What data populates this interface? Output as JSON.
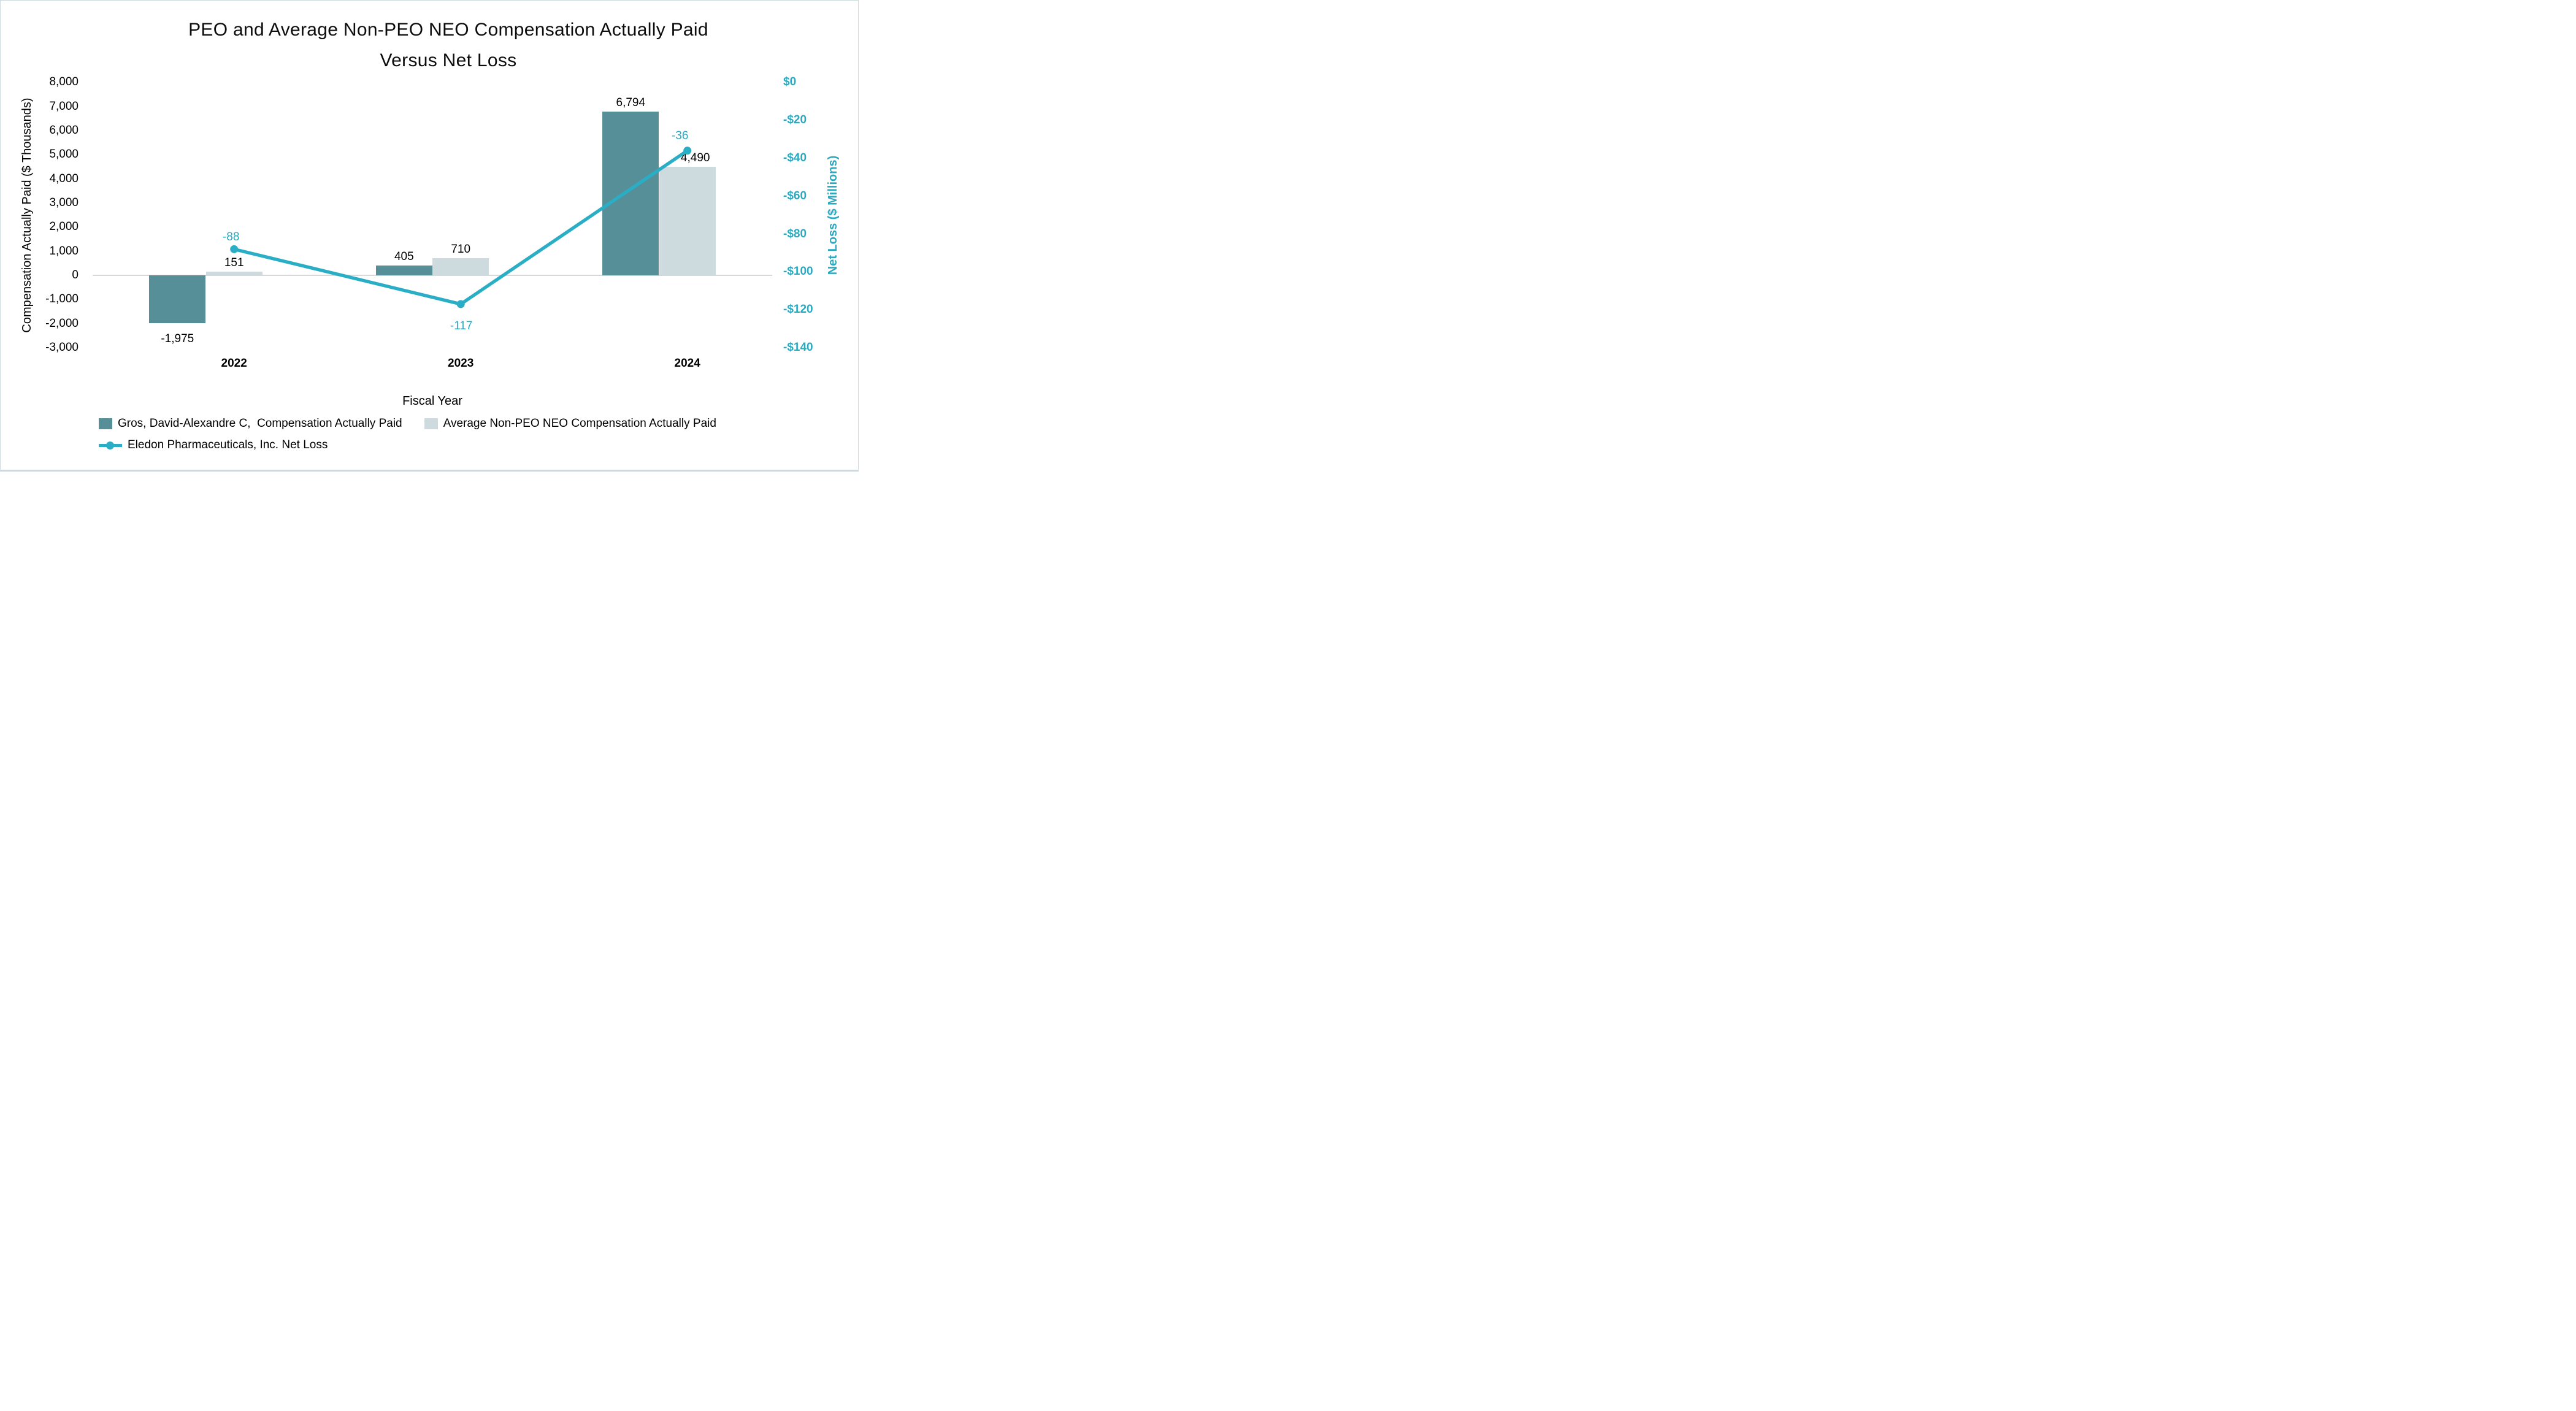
{
  "title": {
    "line1": "PEO and Average Non-PEO NEO Compensation Actually Paid",
    "line2": "Versus Net Loss"
  },
  "chart_data": {
    "type": "bar+line combo",
    "categories": [
      "2022",
      "2023",
      "2024"
    ],
    "series": [
      {
        "name": "Gros, David-Alexandre C,  Compensation Actually Paid",
        "type": "bar",
        "axis": "left",
        "color": "#578F99",
        "values": [
          -1975,
          405,
          6794
        ],
        "labels": [
          "-1,975",
          "405",
          "6,794"
        ]
      },
      {
        "name": "Average Non-PEO NEO Compensation Actually Paid",
        "type": "bar",
        "axis": "left",
        "color": "#CDDADE",
        "values": [
          151,
          710,
          4490
        ],
        "labels": [
          "151",
          "710",
          "4,490"
        ]
      },
      {
        "name": "Eledon Pharmaceuticals, Inc. Net Loss",
        "type": "line",
        "axis": "right",
        "color": "#29AEC5",
        "values": [
          -88,
          -117,
          -36
        ],
        "labels": [
          "-88",
          "-117",
          "-36"
        ]
      }
    ],
    "left_axis": {
      "title": "Compensation Actually Paid ($ Thousands)",
      "min": -3000,
      "max": 8000,
      "step": 1000,
      "tick_values": [
        8000,
        7000,
        6000,
        5000,
        4000,
        3000,
        2000,
        1000,
        0,
        -1000,
        -2000,
        -3000
      ],
      "tick_labels": [
        "8,000",
        "7,000",
        "6,000",
        "5,000",
        "4,000",
        "3,000",
        "2,000",
        "1,000",
        "0",
        "-1,000",
        "-2,000",
        "-3,000"
      ]
    },
    "right_axis": {
      "title": "Net Loss ($ Millions)",
      "min": -140,
      "max": 0,
      "step": 20,
      "tick_values": [
        0,
        -20,
        -40,
        -60,
        -80,
        -100,
        -120,
        -140
      ],
      "tick_labels": [
        "$0",
        "-$20",
        "-$40",
        "-$60",
        "-$80",
        "-$100",
        "-$120",
        "-$140"
      ]
    },
    "x_axis": {
      "title": "Fiscal Year"
    },
    "grid": false,
    "legend_position": "bottom-left"
  },
  "colors": {
    "peo_bar": "#578F99",
    "avg_bar": "#CDDADE",
    "line": "#29AEC5",
    "teal_text": "#2AAAC1",
    "axis_line": "#D9D9D9",
    "text": "#000000"
  }
}
